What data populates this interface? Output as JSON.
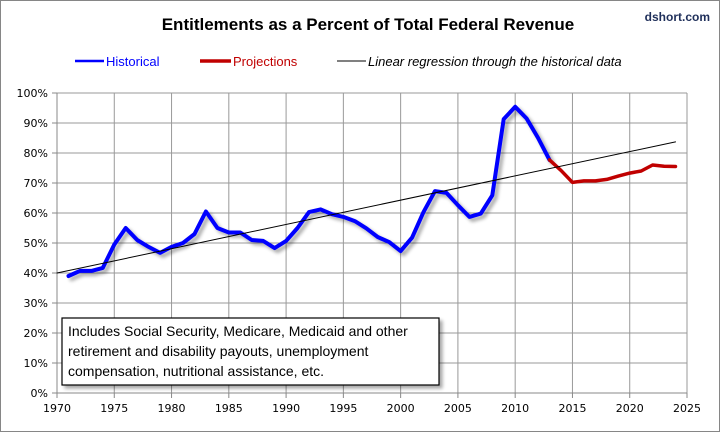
{
  "chart_data": {
    "type": "line",
    "title": "Entitlements as a Percent of Total Federal Revenue",
    "source_label": "dshort.com",
    "xlabel": "",
    "ylabel": "",
    "xlim": [
      1970,
      2025
    ],
    "ylim": [
      0,
      100
    ],
    "x_ticks": [
      1970,
      1975,
      1980,
      1985,
      1990,
      1995,
      2000,
      2005,
      2010,
      2015,
      2020,
      2025
    ],
    "y_ticks": [
      0,
      10,
      20,
      30,
      40,
      50,
      60,
      70,
      80,
      90,
      100
    ],
    "y_tick_suffix": "%",
    "grid": true,
    "legend": {
      "placement": "top",
      "entries": [
        {
          "label": "Historical",
          "color": "#0000ff",
          "style": "normal"
        },
        {
          "label": "Projections",
          "color": "#c00000",
          "style": "normal"
        },
        {
          "label": "Linear regression through the historical data",
          "color": "#000000",
          "style": "italic"
        }
      ]
    },
    "series": [
      {
        "name": "Historical",
        "color": "#0000ff",
        "x": [
          1971,
          1972,
          1973,
          1974,
          1975,
          1976,
          1977,
          1978,
          1979,
          1980,
          1981,
          1982,
          1983,
          1984,
          1985,
          1986,
          1987,
          1988,
          1989,
          1990,
          1991,
          1992,
          1993,
          1994,
          1995,
          1996,
          1997,
          1998,
          1999,
          2000,
          2001,
          2002,
          2003,
          2004,
          2005,
          2006,
          2007,
          2008,
          2009,
          2010,
          2011,
          2012,
          2013
        ],
        "values": [
          39.0,
          40.7,
          40.7,
          41.7,
          49.5,
          55.0,
          51.0,
          48.7,
          46.7,
          48.7,
          50.0,
          53.0,
          60.5,
          55.0,
          53.5,
          53.5,
          51.0,
          50.7,
          48.3,
          50.7,
          55.0,
          60.3,
          61.2,
          59.6,
          58.7,
          57.3,
          54.9,
          52.0,
          50.3,
          47.3,
          51.8,
          60.3,
          67.3,
          66.7,
          62.6,
          58.7,
          59.8,
          65.9,
          91.3,
          95.4,
          91.5,
          85.0,
          77.7
        ]
      },
      {
        "name": "Projections",
        "color": "#c00000",
        "x": [
          2013,
          2014,
          2015,
          2016,
          2017,
          2018,
          2019,
          2020,
          2021,
          2022,
          2023,
          2024
        ],
        "values": [
          77.7,
          74.2,
          70.2,
          70.7,
          70.7,
          71.2,
          72.3,
          73.3,
          74.0,
          76.0,
          75.6,
          75.5
        ]
      },
      {
        "name": "Linear regression through the historical data",
        "color": "#000000",
        "x": [
          1970,
          2024
        ],
        "values": [
          40.0,
          83.7
        ]
      }
    ],
    "annotations": [
      {
        "lines": [
          "Includes Social Security, Medicare, Medicaid and other",
          "retirement and disability payouts, unemployment",
          "compensation, nutritional assistance, etc."
        ],
        "placement": "bottom-left"
      }
    ]
  }
}
